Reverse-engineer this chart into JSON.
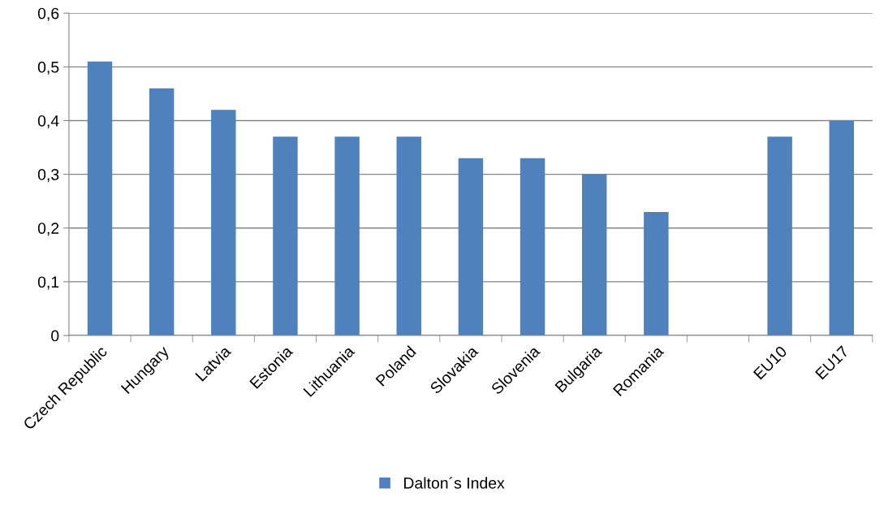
{
  "chart_data": {
    "type": "bar",
    "categories": [
      "Czech Republic",
      "Hungary",
      "Latvia",
      "Estonia",
      "Lithuania",
      "Poland",
      "Slovakia",
      "Slovenia",
      "Bulgaria",
      "Romania",
      null,
      "EU10",
      "EU17"
    ],
    "series": [
      {
        "name": "Dalton´s Index",
        "color": "#4f81bd",
        "values": [
          0.51,
          0.46,
          0.42,
          0.37,
          0.37,
          0.37,
          0.33,
          0.33,
          0.3,
          0.23,
          null,
          0.37,
          0.4
        ]
      }
    ],
    "ylim": [
      0,
      0.6
    ],
    "yticks": [
      0,
      {
        "value": 0.1,
        "label": "0,1"
      },
      {
        "value": 0.2,
        "label": "0,2"
      },
      {
        "value": 0.3,
        "label": "0,3"
      },
      {
        "value": 0.4,
        "label": "0,4"
      },
      {
        "value": 0.5,
        "label": "0,5"
      },
      {
        "value": 0.6,
        "label": "0,6"
      }
    ],
    "grid": "y",
    "legend": "bottom"
  }
}
